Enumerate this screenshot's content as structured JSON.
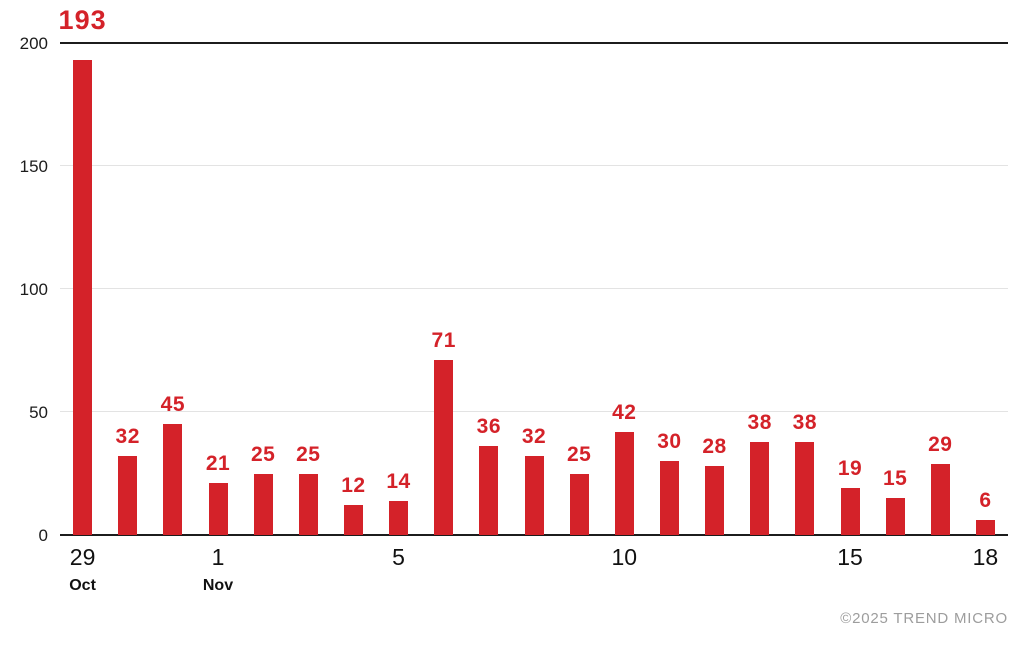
{
  "chart_data": {
    "type": "bar",
    "title": "",
    "categories": [
      "Oct 29",
      "Oct 30",
      "Oct 31",
      "Nov 1",
      "Nov 2",
      "Nov 3",
      "Nov 4",
      "Nov 5",
      "Nov 6",
      "Nov 7",
      "Nov 8",
      "Nov 9",
      "Nov 10",
      "Nov 11",
      "Nov 12",
      "Nov 13",
      "Nov 14",
      "Nov 15",
      "Nov 16",
      "Nov 17",
      "Nov 18"
    ],
    "values": [
      193,
      32,
      45,
      21,
      25,
      25,
      12,
      14,
      71,
      36,
      32,
      25,
      42,
      30,
      28,
      38,
      38,
      19,
      15,
      29,
      6
    ],
    "xlabel": "",
    "ylabel": "",
    "ylim": [
      0,
      200
    ],
    "yticks": [
      0,
      50,
      100,
      150,
      200
    ],
    "xticks": [
      {
        "index": 0,
        "label": "29",
        "sublabel": "Oct"
      },
      {
        "index": 3,
        "label": "1",
        "sublabel": "Nov"
      },
      {
        "index": 7,
        "label": "5",
        "sublabel": ""
      },
      {
        "index": 12,
        "label": "10",
        "sublabel": ""
      },
      {
        "index": 17,
        "label": "15",
        "sublabel": ""
      },
      {
        "index": 20,
        "label": "18",
        "sublabel": ""
      }
    ],
    "grid": "horizontal",
    "legend": "none",
    "bar_color": "#d42229",
    "value_label_color": "#d42229",
    "axis_color": "#1c1c1c",
    "gridline_color": "#e3e3e3"
  },
  "footer": {
    "credit": "©2025 TREND MICRO"
  }
}
